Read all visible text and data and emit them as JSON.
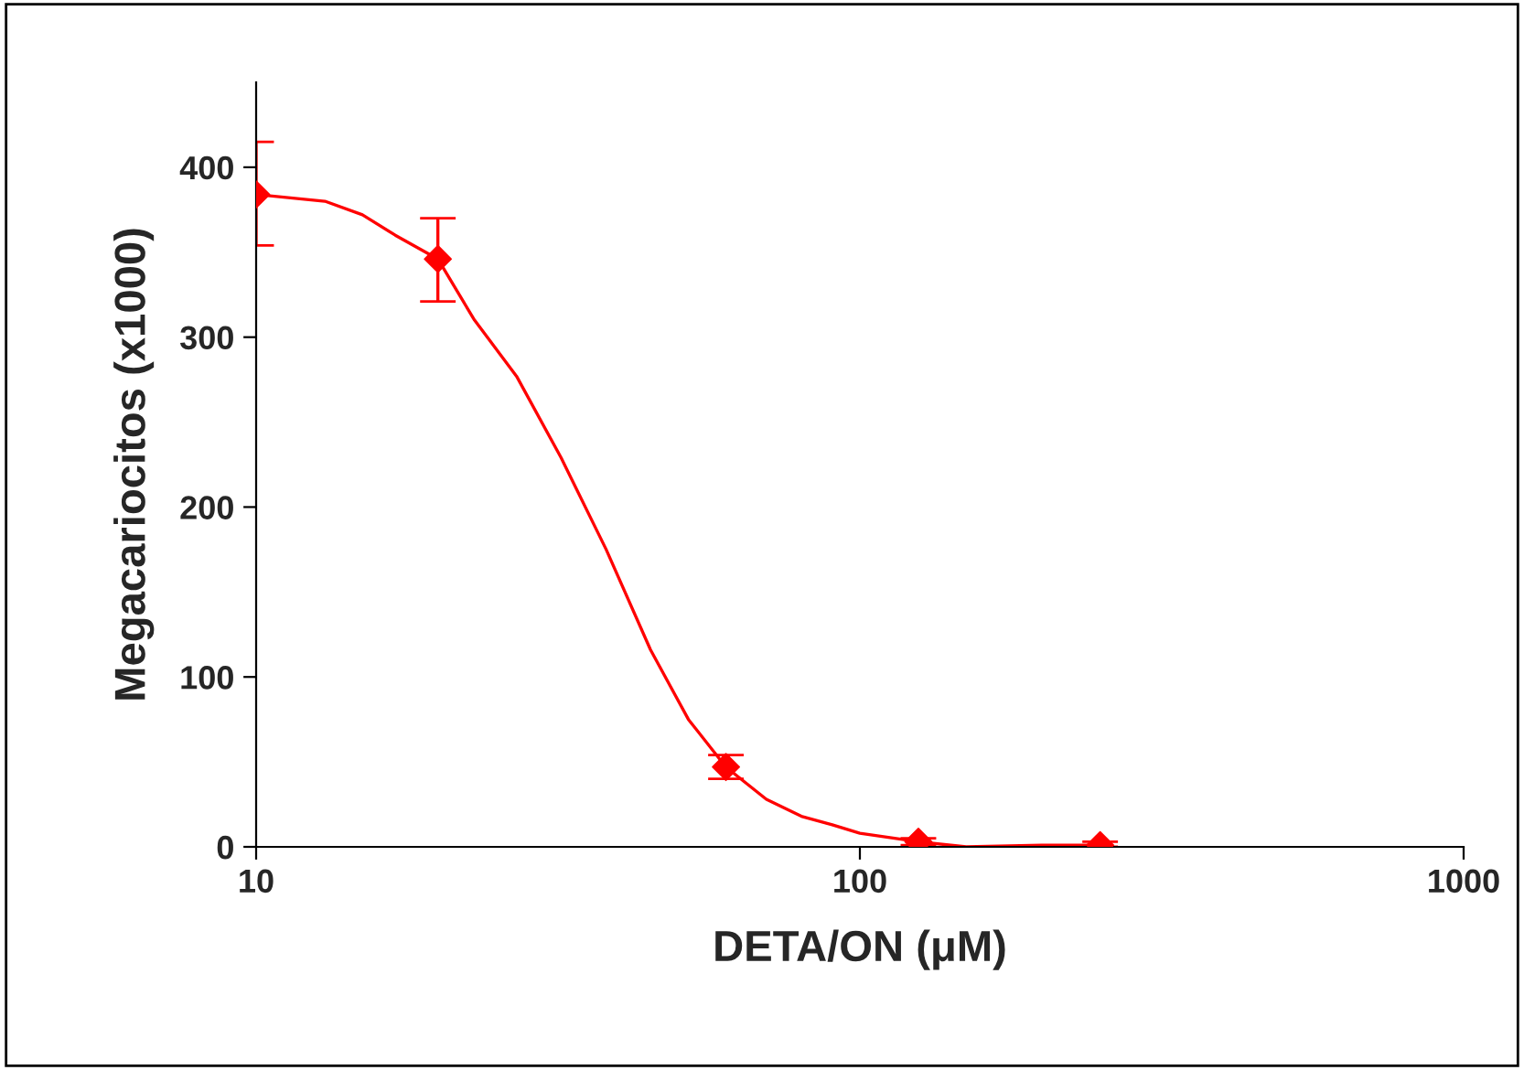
{
  "chart_data": {
    "type": "scatter",
    "xlabel": "DETA/ON (μM)",
    "ylabel": "Megacariocitos (x1000)",
    "log": "x",
    "x": [
      10,
      20,
      60,
      125,
      250
    ],
    "series": [
      {
        "marker": "diamond",
        "color": "#ff0000",
        "values": [
          384,
          346,
          47,
          3,
          1
        ],
        "errors": [
          [
            354,
            415
          ],
          [
            321,
            370
          ],
          [
            40,
            54
          ],
          [
            1,
            5
          ],
          [
            0,
            3
          ]
        ]
      },
      {
        "type": "line",
        "marker": "none",
        "color": "#ff0000",
        "x": [
          10,
          13,
          15,
          17,
          20,
          23,
          27,
          32,
          38,
          45,
          52,
          60,
          70,
          80,
          90,
          100,
          125,
          150,
          200,
          250
        ],
        "values": [
          384,
          380,
          372,
          360,
          346,
          310,
          277,
          229,
          175,
          116,
          75,
          47,
          28,
          18,
          13,
          8,
          3,
          0,
          1,
          1
        ]
      }
    ],
    "xlim": [
      10,
      1000
    ],
    "xticks": [
      10,
      100,
      1000
    ],
    "ylim": [
      0,
      450
    ],
    "yticks": [
      0,
      100,
      200,
      300,
      400
    ],
    "line_style": "solid",
    "grid": false
  }
}
